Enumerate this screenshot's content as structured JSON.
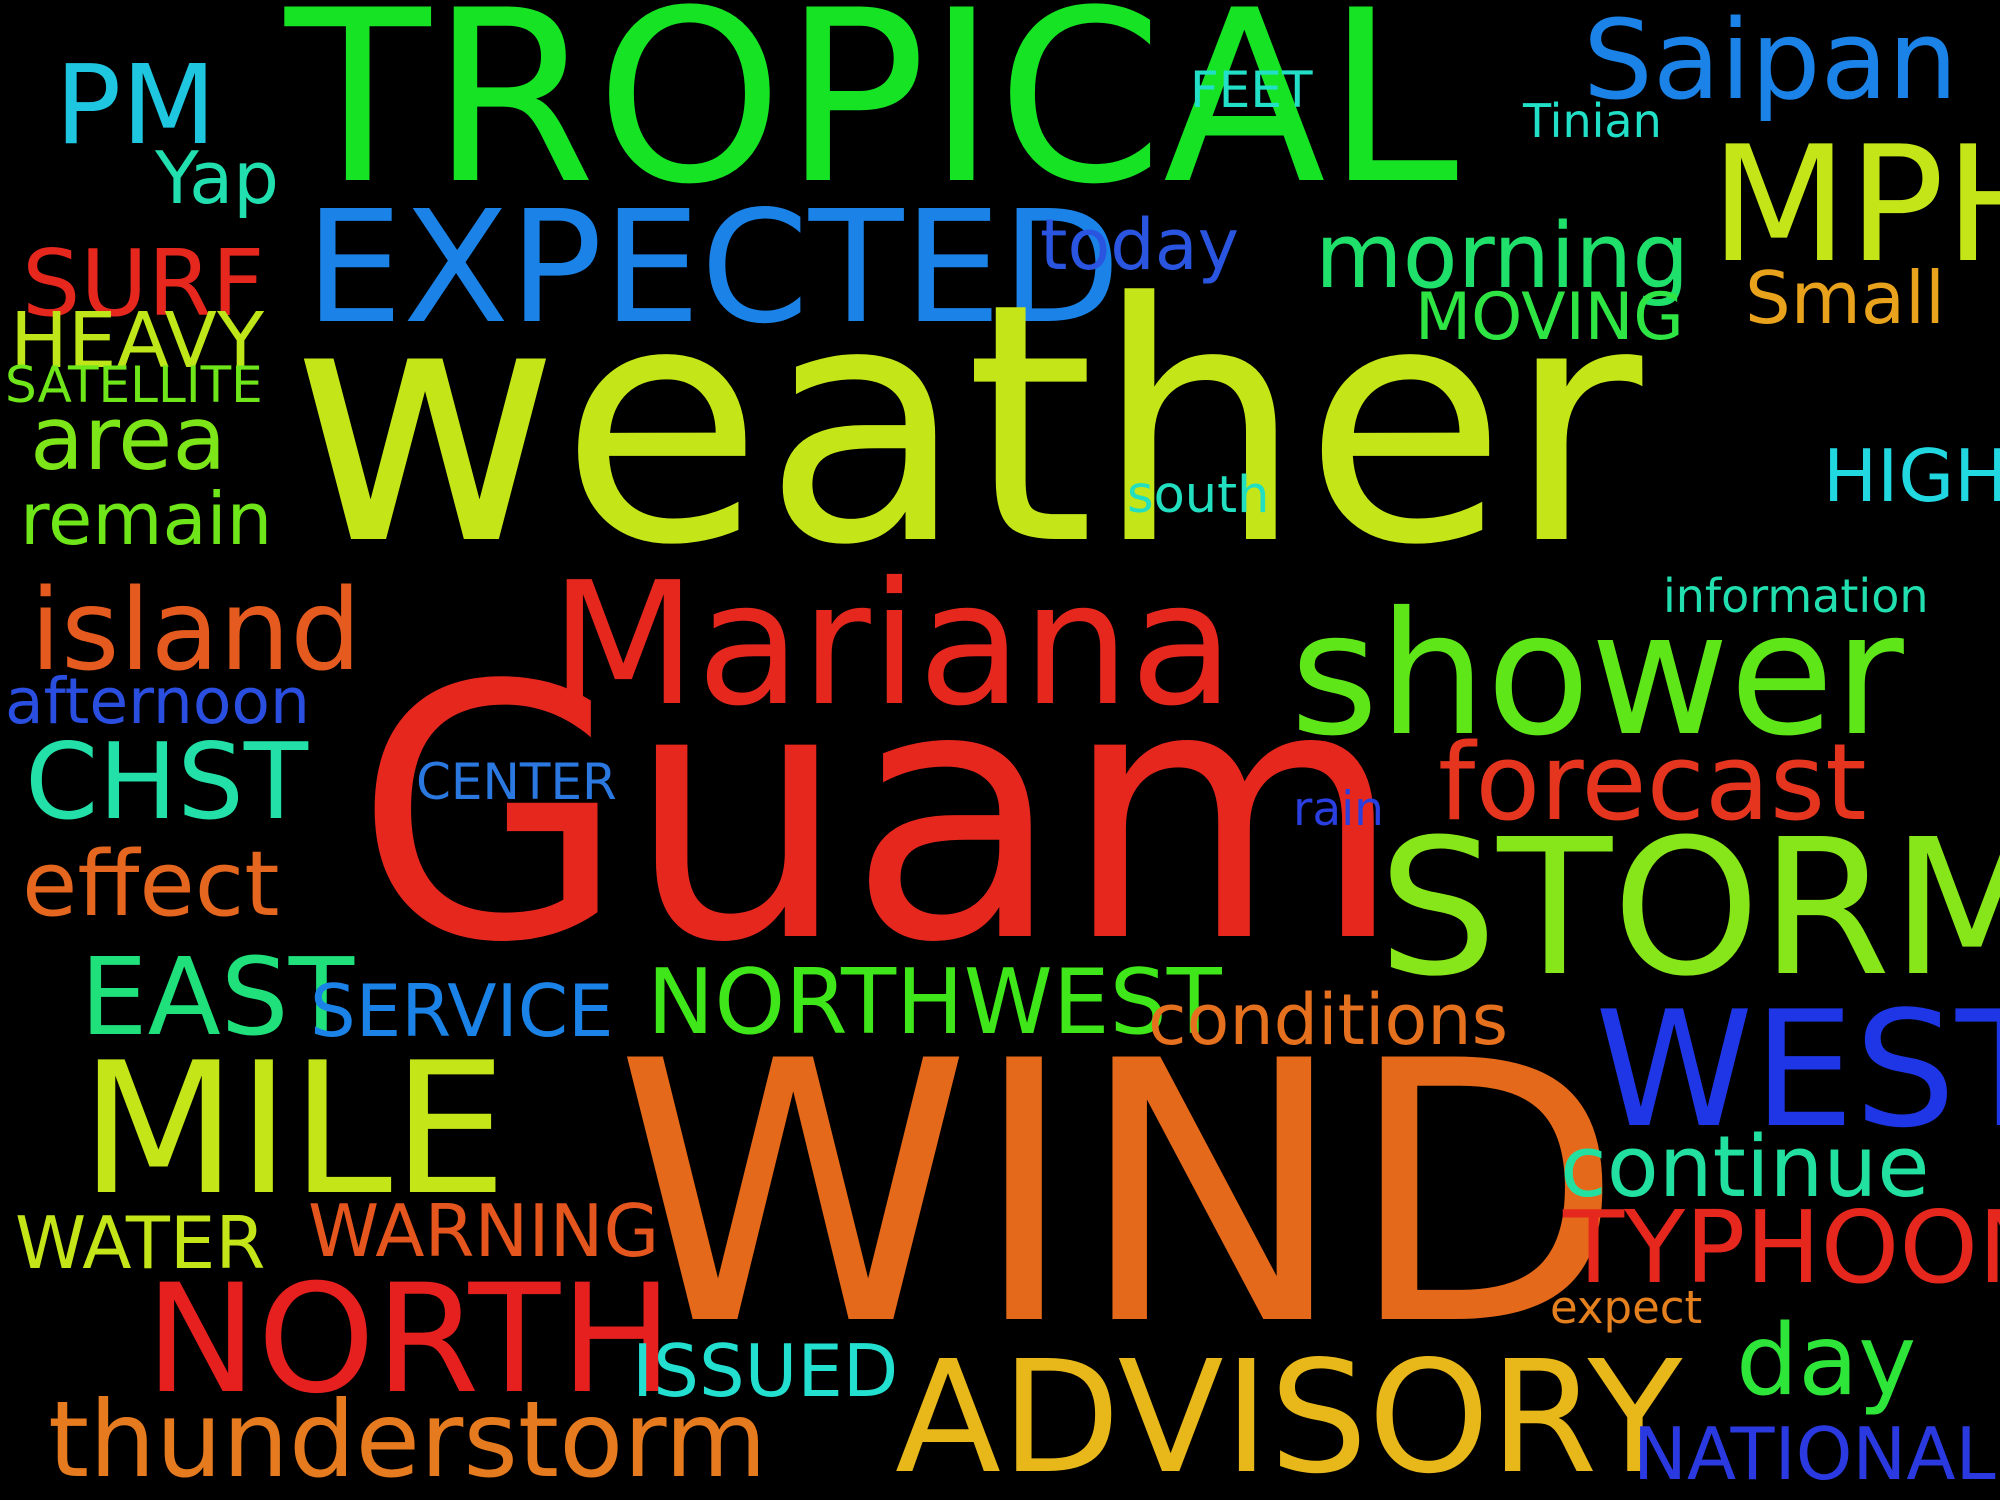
{
  "words": {
    "tropical": {
      "text": "TROPICAL",
      "color": "#17e325"
    },
    "saipan": {
      "text": "Saipan",
      "color": "#1b83e8"
    },
    "pm": {
      "text": "PM",
      "color": "#1fc6e0"
    },
    "feet": {
      "text": "FEET",
      "color": "#22dfc8"
    },
    "tinian": {
      "text": "Tinian",
      "color": "#22dfc8"
    },
    "mph": {
      "text": "MPH",
      "color": "#c4e619"
    },
    "yap": {
      "text": "Yap",
      "color": "#22dfb0"
    },
    "expected": {
      "text": "EXPECTED",
      "color": "#1b83e8"
    },
    "today": {
      "text": "today",
      "color": "#2a55e0"
    },
    "morning": {
      "text": "morning",
      "color": "#1fe06a"
    },
    "surf": {
      "text": "SURF",
      "color": "#e5271e"
    },
    "small": {
      "text": "Small",
      "color": "#e8a21b"
    },
    "moving": {
      "text": "MOVING",
      "color": "#2ee544"
    },
    "heavy": {
      "text": "HEAVY",
      "color": "#bfe619"
    },
    "weather": {
      "text": "weather",
      "color": "#c4e619"
    },
    "satellite": {
      "text": "SATELLITE",
      "color": "#6ee619"
    },
    "area": {
      "text": "area",
      "color": "#7de619"
    },
    "high": {
      "text": "HIGH",
      "color": "#22d8e0"
    },
    "south": {
      "text": "south",
      "color": "#22dfc0"
    },
    "remain": {
      "text": "remain",
      "color": "#6ee619"
    },
    "information": {
      "text": "information",
      "color": "#22dfb0"
    },
    "mariana": {
      "text": "Mariana",
      "color": "#e5271e"
    },
    "island": {
      "text": "island",
      "color": "#e55a1e"
    },
    "shower": {
      "text": "shower",
      "color": "#5ee619"
    },
    "afternoon": {
      "text": "afternoon",
      "color": "#2a4fe0"
    },
    "guam": {
      "text": "Guam",
      "color": "#e5271e"
    },
    "chst": {
      "text": "CHST",
      "color": "#22e0a8"
    },
    "forecast": {
      "text": "forecast",
      "color": "#e5351e"
    },
    "center": {
      "text": "CENTER",
      "color": "#2a78e0"
    },
    "rain": {
      "text": "rain",
      "color": "#2a3fe0"
    },
    "storm": {
      "text": "STORM",
      "color": "#86e619"
    },
    "effect": {
      "text": "effect",
      "color": "#e5661e"
    },
    "east": {
      "text": "EAST",
      "color": "#1fe07a"
    },
    "northwest": {
      "text": "NORTHWEST",
      "color": "#3fe619"
    },
    "service": {
      "text": "SERVICE",
      "color": "#1b83e8"
    },
    "conditions": {
      "text": "conditions",
      "color": "#e5701e"
    },
    "west": {
      "text": "WEST",
      "color": "#1e36e5"
    },
    "mile": {
      "text": "MILE",
      "color": "#c4e619"
    },
    "wind": {
      "text": "WIND",
      "color": "#e5691a"
    },
    "continue": {
      "text": "continue",
      "color": "#22e0a0"
    },
    "warning": {
      "text": "WARNING",
      "color": "#e5551e"
    },
    "water": {
      "text": "WATER",
      "color": "#c4e619"
    },
    "typhoon": {
      "text": "TYPHOON",
      "color": "#e5271e"
    },
    "north": {
      "text": "NORTH",
      "color": "#e5201e"
    },
    "expect": {
      "text": "expect",
      "color": "#e5801e"
    },
    "day": {
      "text": "day",
      "color": "#2ee53a"
    },
    "issued": {
      "text": "ISSUED",
      "color": "#22dfd0"
    },
    "advisory": {
      "text": "ADVISORY",
      "color": "#e8b81b"
    },
    "thunderstorm": {
      "text": "thunderstorm",
      "color": "#e57a1e"
    },
    "national": {
      "text": "NATIONAL",
      "color": "#2a3ae0"
    }
  }
}
